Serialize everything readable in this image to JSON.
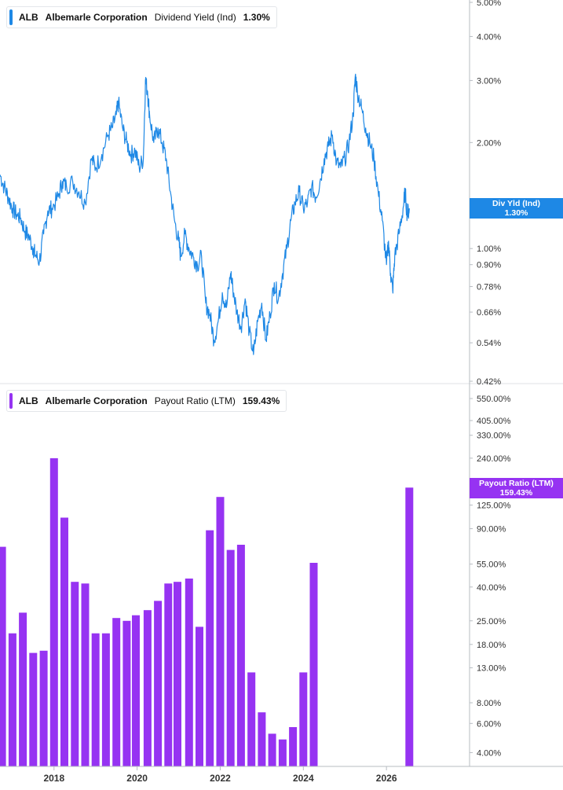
{
  "colors": {
    "yield": "#1e88e5",
    "payout": "#9633f2",
    "axis": "#b7bcc2",
    "text": "#333333"
  },
  "top_panel": {
    "legend": {
      "ticker": "ALB",
      "company": "Albemarle Corporation",
      "metric": "Dividend Yield (Ind)",
      "value": "1.30%"
    },
    "badge": {
      "line1": "Div Yld (Ind)",
      "line2": "1.30%"
    }
  },
  "bottom_panel": {
    "legend": {
      "ticker": "ALB",
      "company": "Albemarle Corporation",
      "metric": "Payout Ratio (LTM)",
      "value": "159.43%"
    },
    "badge": {
      "line1": "Payout Ratio (LTM)",
      "line2": "159.43%"
    }
  },
  "chart_data": [
    {
      "type": "line",
      "series": [
        {
          "name": "Dividend Yield (Ind)"
        }
      ],
      "y_scale": "log",
      "y_ticks": [
        {
          "v": 5.0,
          "label": "5.00%"
        },
        {
          "v": 4.0,
          "label": "4.00%"
        },
        {
          "v": 3.0,
          "label": "3.00%"
        },
        {
          "v": 2.0,
          "label": "2.00%"
        },
        {
          "v": 1.0,
          "label": "1.00%"
        },
        {
          "v": 0.9,
          "label": "0.90%"
        },
        {
          "v": 0.78,
          "label": "0.78%"
        },
        {
          "v": 0.66,
          "label": "0.66%"
        },
        {
          "v": 0.54,
          "label": "0.54%"
        },
        {
          "v": 0.42,
          "label": "0.42%"
        }
      ],
      "ylim": [
        0.42,
        5.0
      ],
      "xlim": [
        2016.7,
        2028.0
      ],
      "points": [
        [
          2016.7,
          1.62
        ],
        [
          2016.8,
          1.5
        ],
        [
          2016.9,
          1.4
        ],
        [
          2017.0,
          1.3
        ],
        [
          2017.1,
          1.25
        ],
        [
          2017.2,
          1.22
        ],
        [
          2017.3,
          1.12
        ],
        [
          2017.4,
          1.08
        ],
        [
          2017.5,
          1.0
        ],
        [
          2017.55,
          0.96
        ],
        [
          2017.65,
          0.92
        ],
        [
          2017.75,
          1.1
        ],
        [
          2017.85,
          1.28
        ],
        [
          2017.95,
          1.3
        ],
        [
          2018.1,
          1.4
        ],
        [
          2018.2,
          1.55
        ],
        [
          2018.3,
          1.5
        ],
        [
          2018.45,
          1.55
        ],
        [
          2018.6,
          1.45
        ],
        [
          2018.75,
          1.35
        ],
        [
          2018.9,
          1.8
        ],
        [
          2019.0,
          1.7
        ],
        [
          2019.15,
          1.85
        ],
        [
          2019.3,
          2.1
        ],
        [
          2019.4,
          2.2
        ],
        [
          2019.5,
          2.4
        ],
        [
          2019.55,
          2.6
        ],
        [
          2019.65,
          2.2
        ],
        [
          2019.75,
          2.0
        ],
        [
          2019.85,
          1.85
        ],
        [
          2019.95,
          1.9
        ],
        [
          2020.05,
          1.7
        ],
        [
          2020.15,
          1.8
        ],
        [
          2020.2,
          3.0
        ],
        [
          2020.25,
          2.8
        ],
        [
          2020.3,
          2.4
        ],
        [
          2020.4,
          2.0
        ],
        [
          2020.5,
          2.2
        ],
        [
          2020.6,
          2.0
        ],
        [
          2020.7,
          1.8
        ],
        [
          2020.8,
          1.45
        ],
        [
          2020.9,
          1.2
        ],
        [
          2021.0,
          1.05
        ],
        [
          2021.05,
          0.95
        ],
        [
          2021.15,
          1.1
        ],
        [
          2021.25,
          1.0
        ],
        [
          2021.35,
          0.95
        ],
        [
          2021.45,
          0.9
        ],
        [
          2021.55,
          0.95
        ],
        [
          2021.65,
          0.7
        ],
        [
          2021.75,
          0.65
        ],
        [
          2021.85,
          0.55
        ],
        [
          2021.95,
          0.62
        ],
        [
          2022.05,
          0.75
        ],
        [
          2022.15,
          0.68
        ],
        [
          2022.25,
          0.85
        ],
        [
          2022.3,
          0.78
        ],
        [
          2022.4,
          0.66
        ],
        [
          2022.5,
          0.6
        ],
        [
          2022.6,
          0.72
        ],
        [
          2022.7,
          0.58
        ],
        [
          2022.8,
          0.5
        ],
        [
          2022.9,
          0.62
        ],
        [
          2023.0,
          0.7
        ],
        [
          2023.1,
          0.55
        ],
        [
          2023.2,
          0.65
        ],
        [
          2023.3,
          0.8
        ],
        [
          2023.4,
          0.72
        ],
        [
          2023.5,
          0.85
        ],
        [
          2023.6,
          1.0
        ],
        [
          2023.7,
          1.2
        ],
        [
          2023.8,
          1.35
        ],
        [
          2023.9,
          1.45
        ],
        [
          2024.0,
          1.3
        ],
        [
          2024.1,
          1.35
        ],
        [
          2024.2,
          1.5
        ],
        [
          2024.3,
          1.4
        ],
        [
          2024.4,
          1.55
        ],
        [
          2024.5,
          1.8
        ],
        [
          2024.6,
          1.95
        ],
        [
          2024.7,
          2.1
        ],
        [
          2024.8,
          1.75
        ],
        [
          2024.9,
          1.7
        ],
        [
          2025.0,
          1.8
        ],
        [
          2025.1,
          2.0
        ],
        [
          2025.2,
          2.4
        ],
        [
          2025.25,
          3.1
        ],
        [
          2025.3,
          2.8
        ],
        [
          2025.4,
          2.5
        ],
        [
          2025.5,
          2.2
        ],
        [
          2025.6,
          2.0
        ],
        [
          2025.7,
          1.8
        ],
        [
          2025.8,
          1.45
        ],
        [
          2025.9,
          1.2
        ],
        [
          2026.0,
          0.9
        ],
        [
          2026.05,
          1.05
        ],
        [
          2026.1,
          0.85
        ],
        [
          2026.15,
          0.76
        ],
        [
          2026.2,
          0.95
        ],
        [
          2026.3,
          1.1
        ],
        [
          2026.4,
          1.3
        ],
        [
          2026.45,
          1.45
        ],
        [
          2026.5,
          1.25
        ],
        [
          2026.55,
          1.3
        ]
      ]
    },
    {
      "type": "bar",
      "series": [
        {
          "name": "Payout Ratio (LTM)"
        }
      ],
      "y_scale": "log",
      "y_ticks": [
        {
          "v": 550,
          "label": "550.00%"
        },
        {
          "v": 405,
          "label": "405.00%"
        },
        {
          "v": 330,
          "label": "330.00%"
        },
        {
          "v": 240,
          "label": "240.00%"
        },
        {
          "v": 125,
          "label": "125.00%"
        },
        {
          "v": 90,
          "label": "90.00%"
        },
        {
          "v": 55,
          "label": "55.00%"
        },
        {
          "v": 40,
          "label": "40.00%"
        },
        {
          "v": 25,
          "label": "25.00%"
        },
        {
          "v": 18,
          "label": "18.00%"
        },
        {
          "v": 13,
          "label": "13.00%"
        },
        {
          "v": 8,
          "label": "8.00%"
        },
        {
          "v": 6,
          "label": "6.00%"
        },
        {
          "v": 4,
          "label": "4.00%"
        }
      ],
      "ylim": [
        3.3,
        550
      ],
      "xlim": [
        2016.7,
        2028.0
      ],
      "x_ticks": [
        "2018",
        "2020",
        "2022",
        "2024",
        "2026"
      ],
      "bars": [
        [
          2016.75,
          70
        ],
        [
          2017.0,
          21
        ],
        [
          2017.25,
          28
        ],
        [
          2017.5,
          16
        ],
        [
          2017.75,
          16.5
        ],
        [
          2018.0,
          240
        ],
        [
          2018.25,
          105
        ],
        [
          2018.5,
          43
        ],
        [
          2018.75,
          42
        ],
        [
          2019.0,
          21
        ],
        [
          2019.25,
          21
        ],
        [
          2019.5,
          26
        ],
        [
          2019.75,
          25
        ],
        [
          2019.97,
          27
        ],
        [
          2020.25,
          29
        ],
        [
          2020.5,
          33
        ],
        [
          2020.75,
          42
        ],
        [
          2020.97,
          43
        ],
        [
          2021.25,
          45
        ],
        [
          2021.5,
          23
        ],
        [
          2021.75,
          88
        ],
        [
          2022.0,
          140
        ],
        [
          2022.25,
          67
        ],
        [
          2022.5,
          72
        ],
        [
          2022.75,
          12.2
        ],
        [
          2023.0,
          7
        ],
        [
          2023.25,
          5.2
        ],
        [
          2023.5,
          4.8
        ],
        [
          2023.75,
          5.7
        ],
        [
          2024.0,
          12.2
        ],
        [
          2024.25,
          56
        ],
        [
          2026.55,
          159.43
        ]
      ]
    }
  ]
}
